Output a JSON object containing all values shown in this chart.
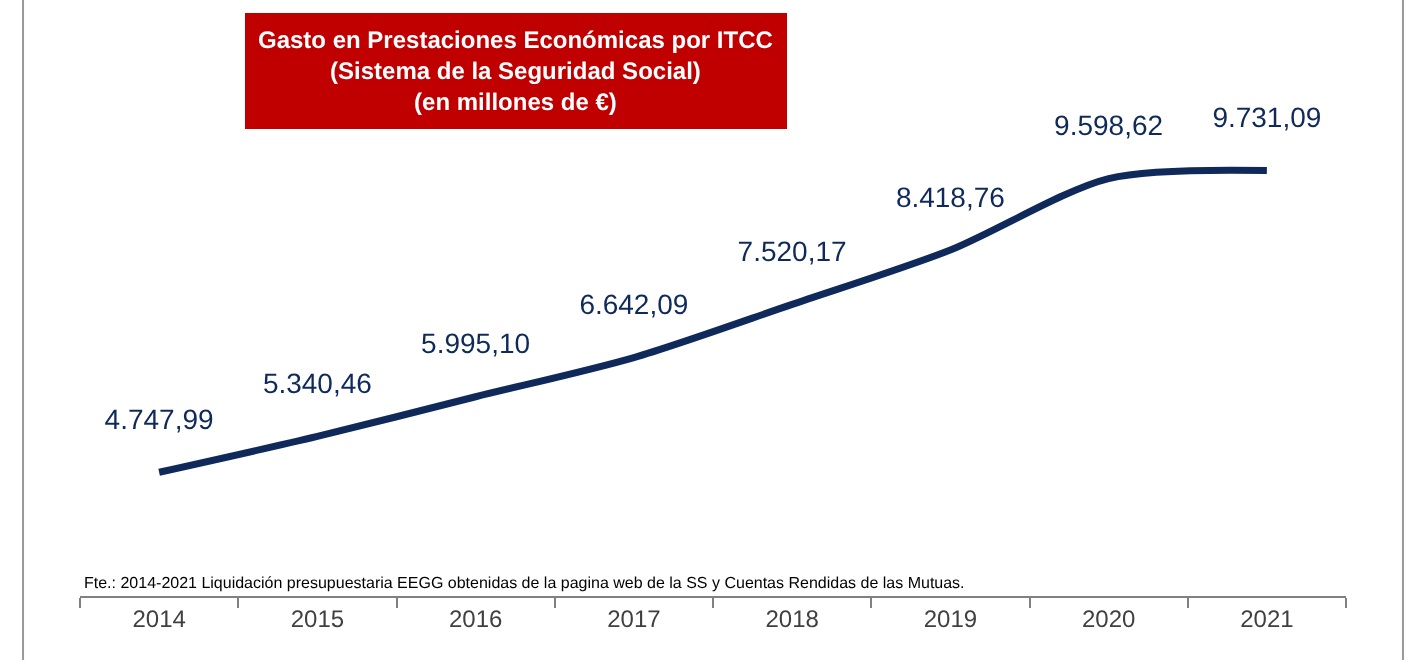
{
  "chart_data": {
    "type": "line",
    "title": "Gasto en Prestaciones Económicas por ITCC\n(Sistema de la Seguridad Social)\n(en millones de €)",
    "categories": [
      "2014",
      "2015",
      "2016",
      "2017",
      "2018",
      "2019",
      "2020",
      "2021"
    ],
    "series": [
      {
        "color": "#0f2a5a",
        "values": [
          4747.99,
          5340.46,
          5995.1,
          6642.09,
          7520.17,
          8418.76,
          9598.62,
          9731.09
        ],
        "value_labels": [
          "4.747,99",
          "5.340,46",
          "5.995,10",
          "6.642,09",
          "7.520,17",
          "8.418,76",
          "9.598,62",
          "9.731,09"
        ]
      }
    ],
    "annotations": [
      "Fte.: 2014-2021 Liquidación presupuestaria EEGG obtenidas de la pagina web de la SS y Cuentas Rendidas de las Mutuas."
    ],
    "legend": false,
    "marker": "none",
    "line_style": "solid"
  }
}
